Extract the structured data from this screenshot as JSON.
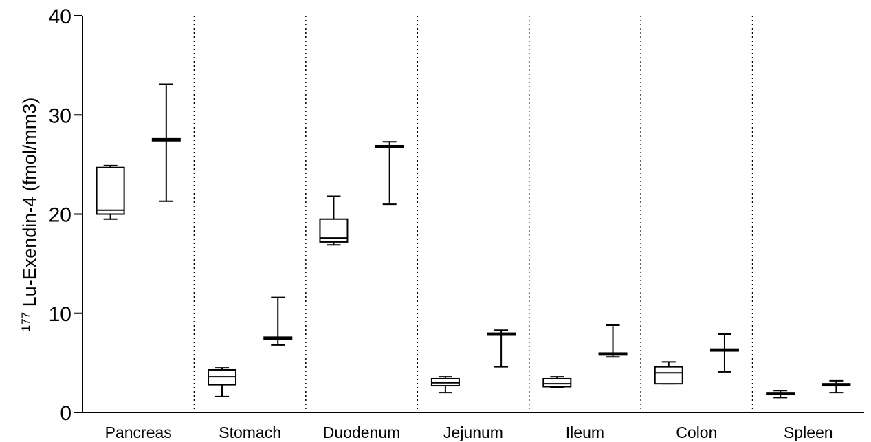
{
  "chart_data": {
    "type": "boxplot",
    "ylabel_superscript": "177",
    "ylabel": "Lu-Exendin-4 (fmol/mm3)",
    "ylim": [
      0,
      40
    ],
    "yticks": [
      "0",
      "10",
      "20",
      "30",
      "40"
    ],
    "categories": [
      "Pancreas",
      "Stomach",
      "Duodenum",
      "Jejunum",
      "Ileum",
      "Colon",
      "Spleen"
    ],
    "groups": [
      {
        "boxes": [
          {
            "min": 19.5,
            "q1": 20.0,
            "median": 20.4,
            "q3": 24.7,
            "max": 24.9
          },
          {
            "min": 21.3,
            "q1": 27.4,
            "median": 27.5,
            "q3": 27.6,
            "max": 33.1
          }
        ]
      },
      {
        "boxes": [
          {
            "min": 1.6,
            "q1": 2.8,
            "median": 3.6,
            "q3": 4.3,
            "max": 4.5
          },
          {
            "min": 6.8,
            "q1": 7.4,
            "median": 7.5,
            "q3": 7.6,
            "max": 11.6
          }
        ]
      },
      {
        "boxes": [
          {
            "min": 16.9,
            "q1": 17.2,
            "median": 17.6,
            "q3": 19.5,
            "max": 21.8
          },
          {
            "min": 21.0,
            "q1": 26.7,
            "median": 26.8,
            "q3": 26.9,
            "max": 27.3
          }
        ]
      },
      {
        "boxes": [
          {
            "min": 2.0,
            "q1": 2.7,
            "median": 3.0,
            "q3": 3.4,
            "max": 3.6
          },
          {
            "min": 4.6,
            "q1": 7.8,
            "median": 7.9,
            "q3": 8.0,
            "max": 8.3
          }
        ]
      },
      {
        "boxes": [
          {
            "min": 2.5,
            "q1": 2.6,
            "median": 2.9,
            "q3": 3.4,
            "max": 3.6
          },
          {
            "min": 5.6,
            "q1": 5.8,
            "median": 5.9,
            "q3": 6.0,
            "max": 8.8
          }
        ]
      },
      {
        "boxes": [
          {
            "min": 2.9,
            "q1": 2.9,
            "median": 4.0,
            "q3": 4.6,
            "max": 5.1
          },
          {
            "min": 4.1,
            "q1": 6.2,
            "median": 6.3,
            "q3": 6.4,
            "max": 7.9
          }
        ]
      },
      {
        "boxes": [
          {
            "min": 1.5,
            "q1": 1.8,
            "median": 1.9,
            "q3": 2.0,
            "max": 2.2
          },
          {
            "min": 2.0,
            "q1": 2.7,
            "median": 2.8,
            "q3": 2.9,
            "max": 3.2
          }
        ]
      }
    ],
    "grid": false,
    "separators": "dotted vertical lines between categories",
    "colors": {
      "stroke": "#000000",
      "background": "#ffffff"
    }
  }
}
